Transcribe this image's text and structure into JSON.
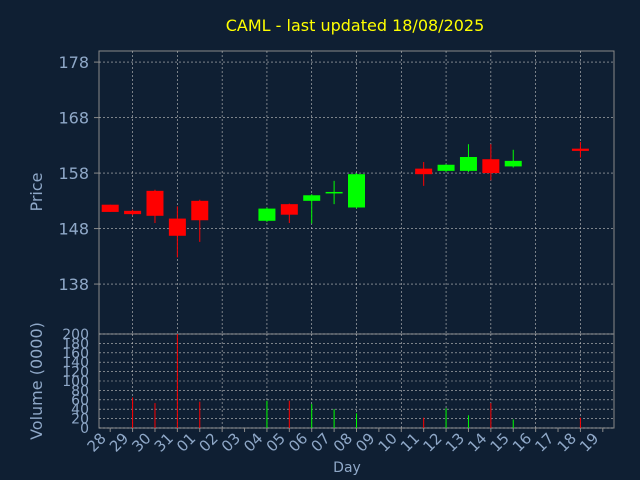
{
  "colors": {
    "background": "#0f1f33",
    "title": "#ffff00",
    "axis_text": "#8fa8c8",
    "frame": "#8a8a8a",
    "grid": "#c0c0c0",
    "up": "#00ff00",
    "down": "#ff0000"
  },
  "chart_data": [
    {
      "type": "candlestick",
      "title": "CAML - last updated 18/08/2025",
      "ylabel": "Price",
      "yticks": [
        "178",
        "168",
        "158",
        "148",
        "138"
      ],
      "ylim": [
        129,
        180
      ],
      "grid": true,
      "categories": [
        "28",
        "29",
        "30",
        "31",
        "01",
        "02",
        "03",
        "04",
        "05",
        "06",
        "07",
        "08",
        "09",
        "10",
        "11",
        "12",
        "13",
        "14",
        "15",
        "16",
        "17",
        "18",
        "19"
      ],
      "candles": [
        {
          "day": "28",
          "open": 152.3,
          "close": 151.0,
          "high": 152.3,
          "low": 151.0
        },
        {
          "day": "29",
          "open": 151.2,
          "close": 150.6,
          "high": 151.4,
          "low": 150.4
        },
        {
          "day": "30",
          "open": 154.8,
          "close": 150.3,
          "high": 155.0,
          "low": 149.0
        },
        {
          "day": "31",
          "open": 149.8,
          "close": 146.7,
          "high": 152.0,
          "low": 142.8
        },
        {
          "day": "01",
          "open": 153.0,
          "close": 149.5,
          "high": 153.2,
          "low": 145.6
        },
        {
          "day": "04",
          "open": 149.4,
          "close": 151.6,
          "high": 151.8,
          "low": 149.2
        },
        {
          "day": "05",
          "open": 152.4,
          "close": 150.5,
          "high": 152.5,
          "low": 149.0
        },
        {
          "day": "06",
          "open": 153.0,
          "close": 154.0,
          "high": 154.2,
          "low": 148.9
        },
        {
          "day": "07",
          "open": 154.4,
          "close": 154.6,
          "high": 156.6,
          "low": 152.4
        },
        {
          "day": "08",
          "open": 151.8,
          "close": 157.8,
          "high": 158.0,
          "low": 151.6
        },
        {
          "day": "11",
          "open": 158.8,
          "close": 157.8,
          "high": 160.0,
          "low": 155.7
        },
        {
          "day": "12",
          "open": 158.4,
          "close": 159.5,
          "high": 159.6,
          "low": 158.2
        },
        {
          "day": "13",
          "open": 158.4,
          "close": 160.9,
          "high": 163.2,
          "low": 158.2
        },
        {
          "day": "14",
          "open": 160.5,
          "close": 158.0,
          "high": 163.2,
          "low": 156.7
        },
        {
          "day": "15",
          "open": 159.2,
          "close": 160.2,
          "high": 162.2,
          "low": 159.0
        },
        {
          "day": "18",
          "open": 162.4,
          "close": 162.0,
          "high": 163.6,
          "low": 160.8
        }
      ]
    },
    {
      "type": "bar",
      "ylabel": "Volume (0000)",
      "xlabel": "Day",
      "yticks": [
        "200",
        "180",
        "160",
        "140",
        "120",
        "100",
        "80",
        "60",
        "40",
        "20",
        "0"
      ],
      "ylim": [
        0,
        200
      ],
      "grid": true,
      "categories": [
        "28",
        "29",
        "30",
        "31",
        "01",
        "02",
        "03",
        "04",
        "05",
        "06",
        "07",
        "08",
        "09",
        "10",
        "11",
        "12",
        "13",
        "14",
        "15",
        "16",
        "17",
        "18",
        "19"
      ],
      "bars": [
        {
          "day": "29",
          "value": 65,
          "direction": "down"
        },
        {
          "day": "30",
          "value": 53,
          "direction": "down"
        },
        {
          "day": "31",
          "value": 200,
          "direction": "down"
        },
        {
          "day": "01",
          "value": 56,
          "direction": "down"
        },
        {
          "day": "04",
          "value": 58,
          "direction": "up"
        },
        {
          "day": "05",
          "value": 58,
          "direction": "down"
        },
        {
          "day": "06",
          "value": 51,
          "direction": "up"
        },
        {
          "day": "07",
          "value": 40,
          "direction": "up"
        },
        {
          "day": "08",
          "value": 31,
          "direction": "up"
        },
        {
          "day": "11",
          "value": 22,
          "direction": "down"
        },
        {
          "day": "12",
          "value": 42,
          "direction": "up"
        },
        {
          "day": "13",
          "value": 27,
          "direction": "up"
        },
        {
          "day": "14",
          "value": 53,
          "direction": "down"
        },
        {
          "day": "15",
          "value": 18,
          "direction": "up"
        },
        {
          "day": "18",
          "value": 22,
          "direction": "down"
        }
      ]
    }
  ]
}
